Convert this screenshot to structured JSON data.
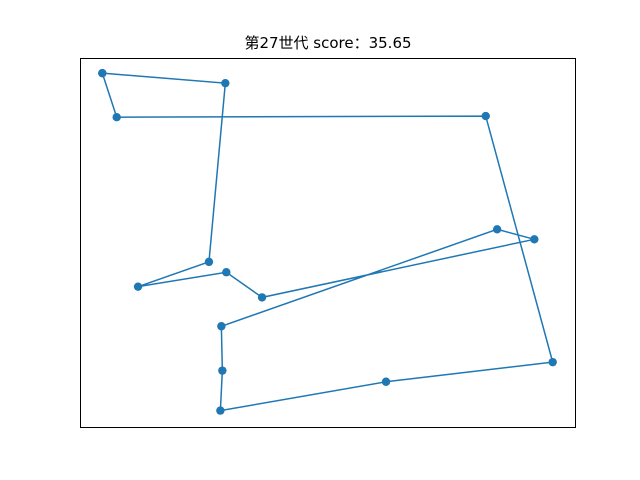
{
  "chart_data": {
    "type": "line",
    "title": "第27世代 score：35.65",
    "xlabel": "",
    "ylabel": "",
    "grid": false,
    "xlim": [
      0,
      100
    ],
    "ylim": [
      0,
      100
    ],
    "axis_ticks": "hidden",
    "line_color": "#1f77b4",
    "marker": "circle",
    "series": [
      {
        "x": [
          4.5,
          29.3,
          26.0,
          11.7,
          29.5,
          36.7,
          91.6,
          84.1,
          28.5,
          28.7,
          28.3,
          61.7,
          95.3,
          81.8,
          7.4,
          4.5
        ],
        "y": [
          95.9,
          93.2,
          44.9,
          38.2,
          42.1,
          35.3,
          51.0,
          53.7,
          27.5,
          15.5,
          4.7,
          12.5,
          17.8,
          84.3,
          84.0,
          95.9
        ]
      }
    ]
  }
}
